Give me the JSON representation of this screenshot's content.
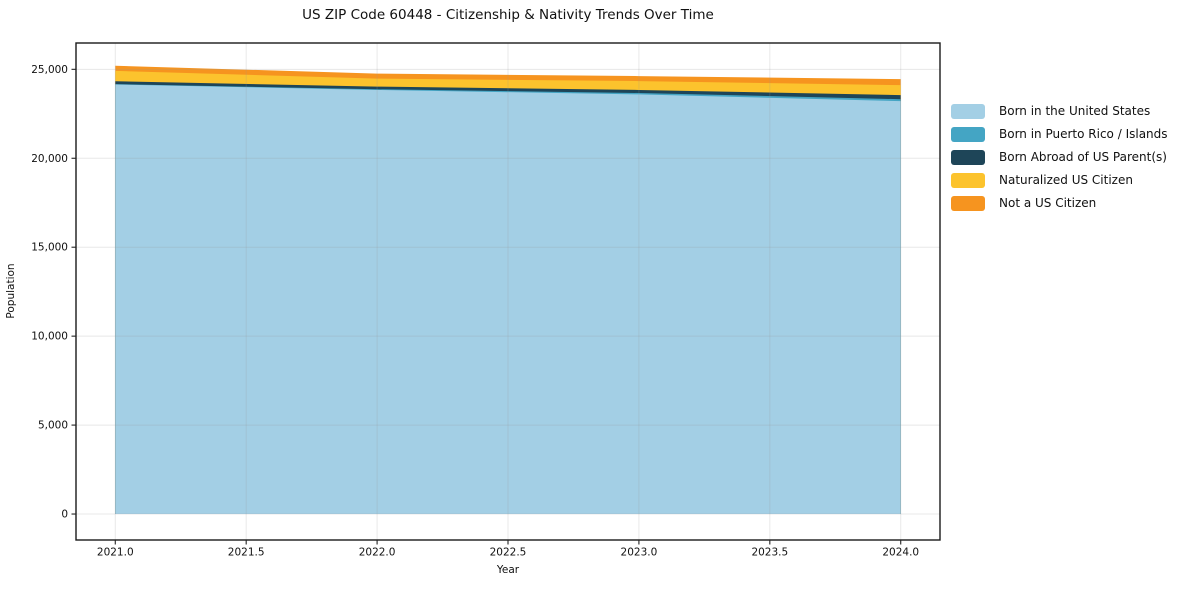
{
  "chart_data": {
    "type": "area",
    "stacked": true,
    "title": "US ZIP Code 60448 - Citizenship & Nativity Trends Over Time",
    "xlabel": "Year",
    "ylabel": "Population",
    "grid": true,
    "legend_position": "right",
    "background_color": "#ffffff",
    "x": [
      2021,
      2022,
      2023,
      2024
    ],
    "xlim": [
      2020.85,
      2024.15
    ],
    "ylim": [
      -1460,
      26480
    ],
    "x_ticks": [
      2021.0,
      2021.5,
      2022.0,
      2022.5,
      2023.0,
      2023.5,
      2024.0
    ],
    "x_tick_labels": [
      "2021.0",
      "2021.5",
      "2022.0",
      "2022.5",
      "2023.0",
      "2023.5",
      "2024.0"
    ],
    "y_ticks": [
      0,
      5000,
      10000,
      15000,
      20000,
      25000
    ],
    "y_tick_labels": [
      "0",
      "5,000",
      "10,000",
      "15,000",
      "20,000",
      "25,000"
    ],
    "series": [
      {
        "name": "Born in the United States",
        "color": "#a3cfe5",
        "values": [
          24150,
          23840,
          23590,
          23210
        ]
      },
      {
        "name": "Born in Puerto Rico / Islands",
        "color": "#44a5c4",
        "values": [
          20,
          40,
          80,
          110
        ]
      },
      {
        "name": "Born Abroad of US Parent(s)",
        "color": "#1e4558",
        "values": [
          160,
          150,
          170,
          230
        ]
      },
      {
        "name": "Naturalized US Citizen",
        "color": "#fcc32d",
        "values": [
          580,
          450,
          500,
          560
        ]
      },
      {
        "name": "Not a US Citizen",
        "color": "#f6941f",
        "values": [
          290,
          280,
          280,
          340
        ]
      }
    ]
  }
}
